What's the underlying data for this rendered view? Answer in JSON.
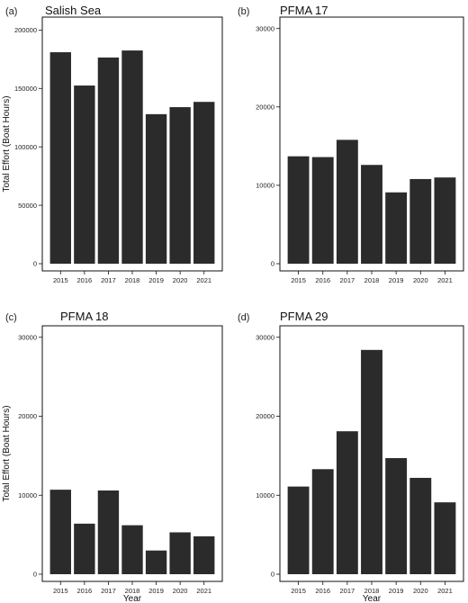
{
  "axis_labels": {
    "ylabel": "Total Effort (Boat Hours)",
    "xlabel": "Year"
  },
  "chart_data": [
    {
      "type": "bar",
      "panel": "(a)",
      "title": "Salish Sea",
      "categories": [
        "2015",
        "2016",
        "2017",
        "2018",
        "2019",
        "2020",
        "2021"
      ],
      "values": [
        181000,
        152500,
        176500,
        182500,
        128000,
        134000,
        138500
      ],
      "ylim": [
        0,
        208000
      ],
      "yticks": [
        0,
        50000,
        100000,
        150000,
        200000
      ],
      "ylabel": "Total Effort (Boat Hours)",
      "xlabel": "",
      "grid": false
    },
    {
      "type": "bar",
      "panel": "(b)",
      "title": "PFMA 17",
      "categories": [
        "2015",
        "2016",
        "2017",
        "2018",
        "2019",
        "2020",
        "2021"
      ],
      "values": [
        13700,
        13600,
        15800,
        12600,
        9100,
        10800,
        11000
      ],
      "ylim": [
        0,
        31000
      ],
      "yticks": [
        0,
        10000,
        20000,
        30000
      ],
      "ylabel": "",
      "xlabel": "",
      "grid": false
    },
    {
      "type": "bar",
      "panel": "(c)",
      "title": "PFMA 18",
      "categories": [
        "2015",
        "2016",
        "2017",
        "2018",
        "2019",
        "2020",
        "2021"
      ],
      "values": [
        10700,
        6400,
        10600,
        6200,
        3000,
        5300,
        4800
      ],
      "ylim": [
        0,
        31000
      ],
      "yticks": [
        0,
        10000,
        20000,
        30000
      ],
      "ylabel": "Total Effort (Boat Hours)",
      "xlabel": "Year",
      "grid": false
    },
    {
      "type": "bar",
      "panel": "(d)",
      "title": "PFMA 29",
      "categories": [
        "2015",
        "2016",
        "2017",
        "2018",
        "2019",
        "2020",
        "2021"
      ],
      "values": [
        11100,
        13300,
        18100,
        28400,
        14700,
        12200,
        9100
      ],
      "ylim": [
        0,
        31000
      ],
      "yticks": [
        0,
        10000,
        20000,
        30000
      ],
      "ylabel": "",
      "xlabel": "Year",
      "grid": false
    }
  ],
  "colors": {
    "bar": "#2b2b2b",
    "frame": "#111111",
    "text": "#222222"
  }
}
